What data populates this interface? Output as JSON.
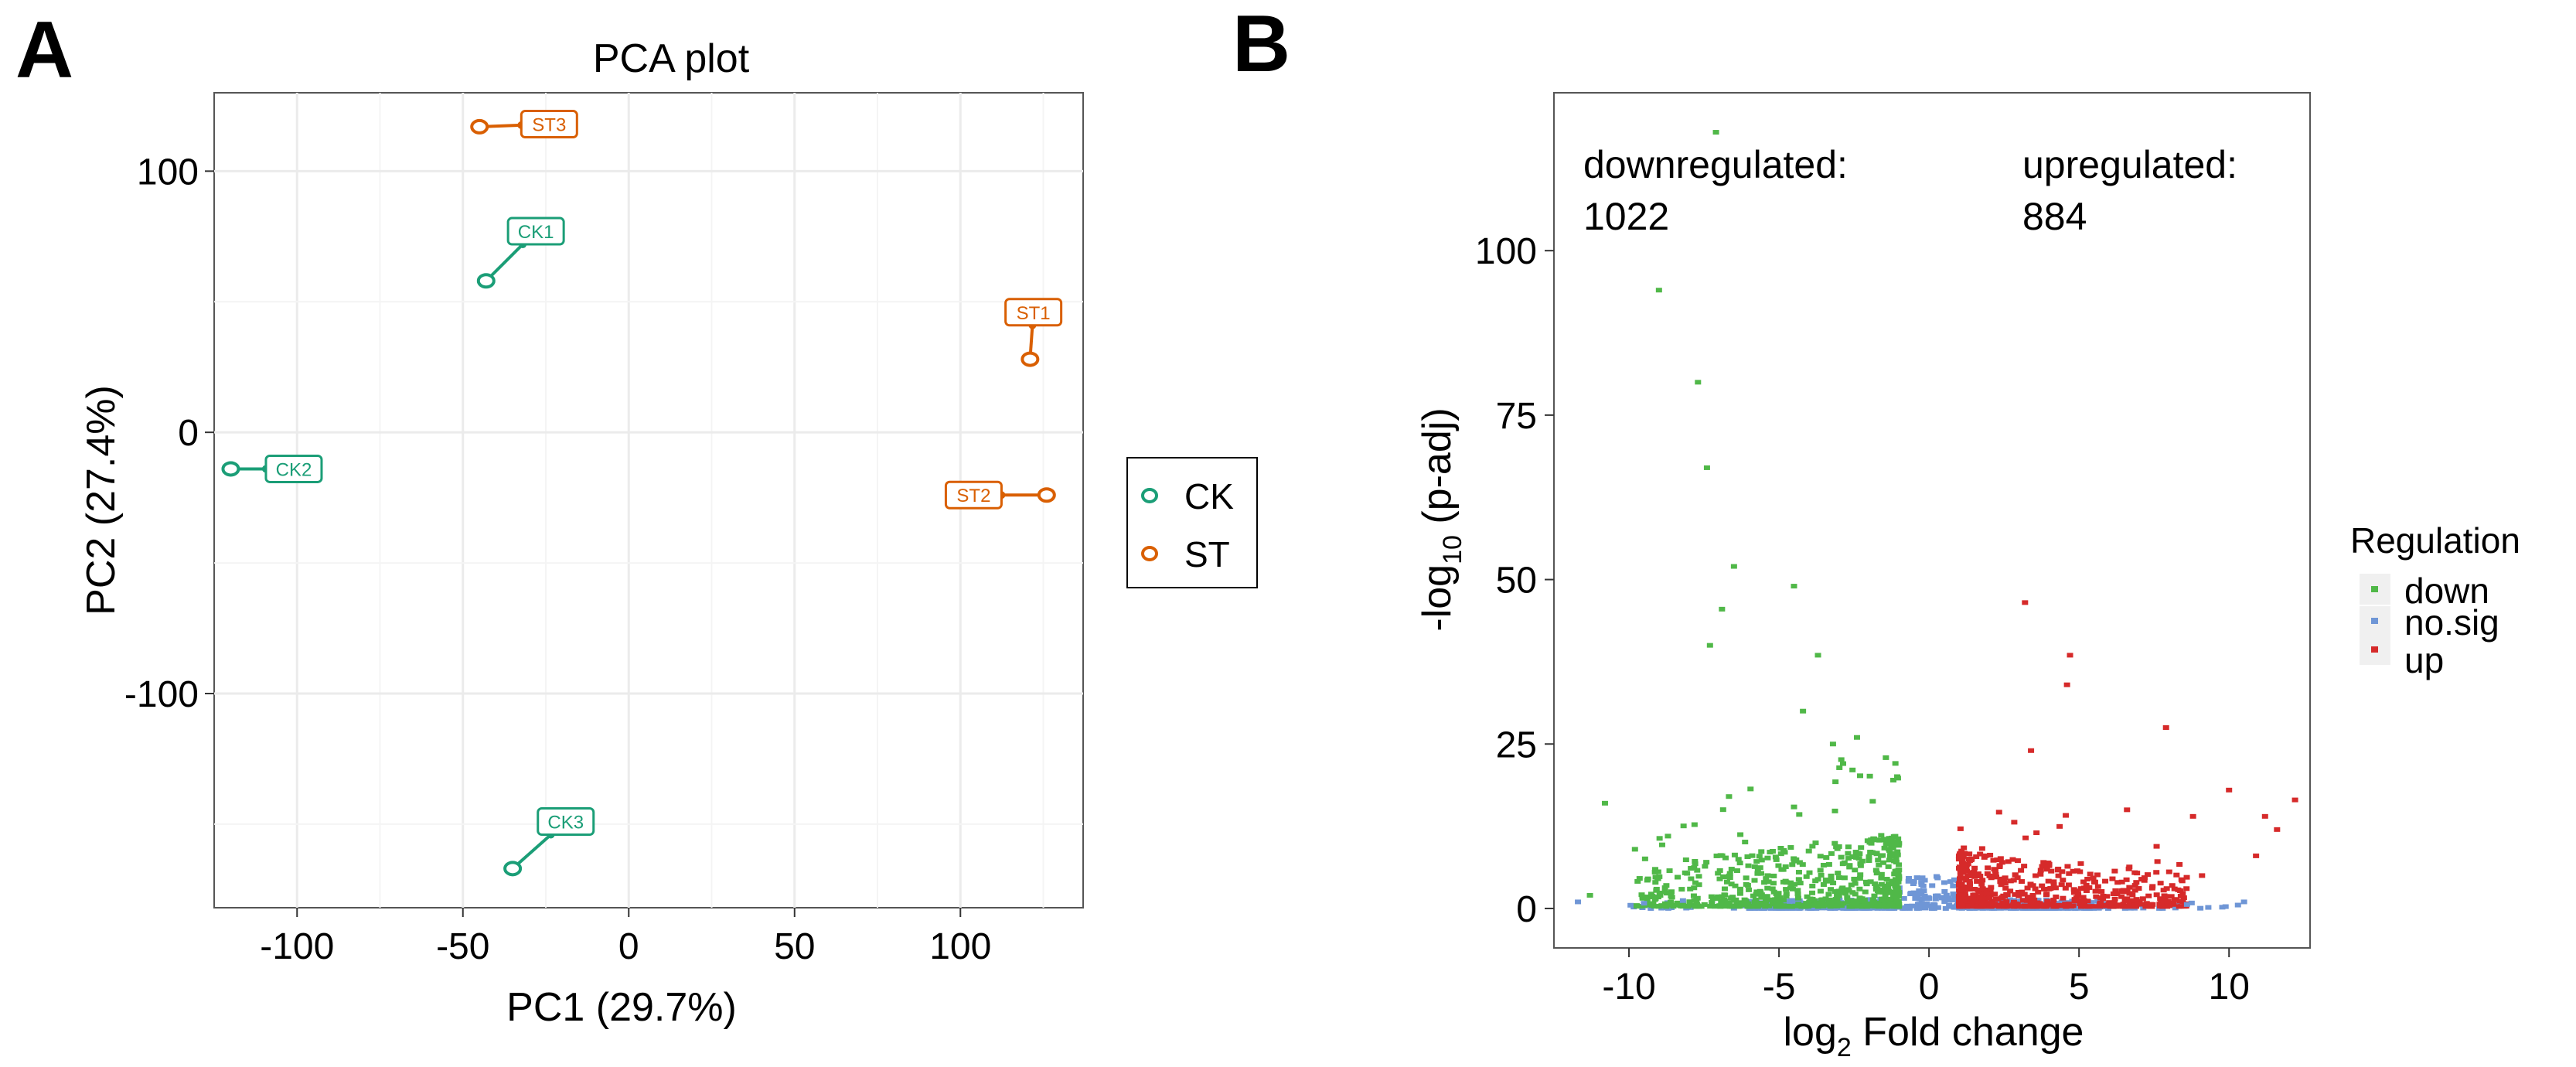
{
  "panels": {
    "a": {
      "letter": "A"
    },
    "b": {
      "letter": "B"
    }
  },
  "colors": {
    "ck": "#1b9e77",
    "st": "#d95f02",
    "down": "#50b848",
    "nosig": "#6f96d6",
    "up": "#d62a2a",
    "grid": "#ebebeb",
    "panel_border": "#555555"
  },
  "chart_data": [
    {
      "type": "scatter",
      "title": "PCA plot",
      "xlabel": "PC1 (29.7%)",
      "ylabel": "PC2 (27.4%)",
      "xlim": [
        -125,
        137
      ],
      "ylim": [
        -182,
        130
      ],
      "xticks": [
        -100,
        -50,
        0,
        50,
        100
      ],
      "xtick_labels": [
        "-100",
        "-50",
        "0",
        "50",
        "100"
      ],
      "yticks": [
        -100,
        0,
        100
      ],
      "ytick_labels": [
        "-100",
        "0",
        "100"
      ],
      "grid": true,
      "legend": {
        "position": "right",
        "entries": [
          {
            "label": "CK",
            "color_key": "ck"
          },
          {
            "label": "ST",
            "color_key": "st"
          }
        ]
      },
      "points": [
        {
          "label": "CK1",
          "group": "CK",
          "x": -43,
          "y": 58,
          "label_x": -28,
          "label_y": 77
        },
        {
          "label": "CK2",
          "group": "CK",
          "x": -120,
          "y": -14,
          "label_x": -101,
          "label_y": -14
        },
        {
          "label": "CK3",
          "group": "CK",
          "x": -35,
          "y": -167,
          "label_x": -19,
          "label_y": -149
        },
        {
          "label": "ST1",
          "group": "ST",
          "x": 121,
          "y": 28,
          "label_x": 122,
          "label_y": 46
        },
        {
          "label": "ST2",
          "group": "ST",
          "x": 126,
          "y": -24,
          "label_x": 104,
          "label_y": -24
        },
        {
          "label": "ST3",
          "group": "ST",
          "x": -45,
          "y": 117,
          "label_x": -24,
          "label_y": 118
        }
      ]
    },
    {
      "type": "scatter",
      "subtype": "volcano",
      "title": "",
      "xlabel": "log2 Fold change",
      "xlabel_parts": {
        "pre": "log",
        "sub": "2",
        "post": " Fold change"
      },
      "ylabel": "-log10 (p-adj)",
      "ylabel_parts": {
        "pre": "-log",
        "sub": "10",
        "post": " (p-adj)"
      },
      "xlim": [
        -12.5,
        12.7
      ],
      "ylim": [
        -6,
        124
      ],
      "xticks": [
        -10,
        -5,
        0,
        5,
        10
      ],
      "xtick_labels": [
        "-10",
        "-5",
        "0",
        "5",
        "10"
      ],
      "yticks": [
        0,
        25,
        50,
        75,
        100
      ],
      "ytick_labels": [
        "0",
        "25",
        "50",
        "75",
        "100"
      ],
      "grid": false,
      "annotations": {
        "down_label": "downregulated:",
        "down_count": "1022",
        "up_label": "upregulated:",
        "up_count": "884"
      },
      "legend": {
        "title": "Regulation",
        "position": "right",
        "entries": [
          {
            "label": "down",
            "color_key": "down"
          },
          {
            "label": "no.sig",
            "color_key": "nosig"
          },
          {
            "label": "up",
            "color_key": "up"
          }
        ]
      },
      "labeled_outliers": {
        "down": [
          [
            -7.1,
            118
          ],
          [
            -9.0,
            94
          ],
          [
            -7.7,
            80
          ],
          [
            -7.4,
            67
          ],
          [
            -6.5,
            52
          ],
          [
            -4.5,
            49
          ],
          [
            -6.9,
            45.5
          ],
          [
            -7.3,
            40
          ],
          [
            -3.7,
            38.5
          ],
          [
            -4.2,
            30
          ],
          [
            -2.4,
            26
          ],
          [
            -3.2,
            25
          ],
          [
            -10.8,
            16
          ],
          [
            -11.3,
            2
          ],
          [
            -9.8,
            9
          ],
          [
            -8.7,
            11
          ]
        ],
        "up": [
          [
            3.2,
            46.5
          ],
          [
            4.7,
            38.5
          ],
          [
            4.6,
            34
          ],
          [
            7.9,
            27.5
          ],
          [
            3.4,
            24
          ],
          [
            10.0,
            18
          ],
          [
            12.2,
            16.5
          ],
          [
            11.2,
            14
          ],
          [
            11.6,
            12
          ],
          [
            8.8,
            14
          ],
          [
            6.6,
            15
          ],
          [
            10.9,
            8
          ],
          [
            9.1,
            5
          ]
        ],
        "nosig": [
          [
            -11.7,
            1
          ],
          [
            -9.5,
            0.8
          ],
          [
            10.5,
            1
          ],
          [
            8.6,
            0.6
          ],
          [
            -8.2,
            1.2
          ]
        ]
      },
      "generated_mass": {
        "description": "dense clusters of down / no.sig / up points",
        "down_range_x": [
          -10.5,
          -1.0
        ],
        "up_range_x": [
          1.0,
          10.0
        ],
        "nosig_range_x": [
          -11,
          10.5
        ]
      }
    }
  ]
}
